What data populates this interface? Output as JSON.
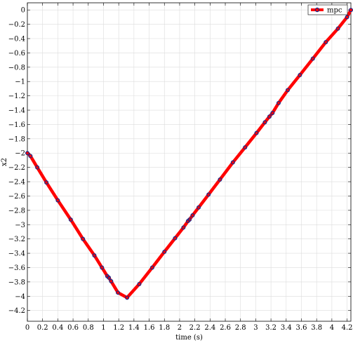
{
  "chart_data": {
    "type": "line",
    "title": "",
    "xlabel": "time (s)",
    "ylabel": "x2",
    "xlim": [
      0,
      4.25
    ],
    "ylim": [
      -4.35,
      0.1
    ],
    "x_ticks": [
      0,
      0.2,
      0.4,
      0.6,
      0.8,
      1,
      1.2,
      1.4,
      1.6,
      1.8,
      2,
      2.2,
      2.4,
      2.6,
      2.8,
      3,
      3.2,
      3.4,
      3.6,
      3.8,
      4,
      4.2
    ],
    "x_tick_labels": [
      "0",
      "0.2",
      "0.4",
      "0.6",
      "0.8",
      "1",
      "1.2",
      "1.4",
      "1.6",
      "1.8",
      "2",
      "2.2",
      "2.4",
      "2.6",
      "2.8",
      "3",
      "3.2",
      "3.4",
      "3.6",
      "3.8",
      "4",
      "4.2"
    ],
    "y_ticks": [
      0,
      -0.2,
      -0.4,
      -0.6,
      -0.8,
      -1,
      -1.2,
      -1.4,
      -1.6,
      -1.8,
      -2,
      -2.2,
      -2.4,
      -2.6,
      -2.8,
      -3,
      -3.2,
      -3.4,
      -3.6,
      -3.8,
      -4,
      -4.2
    ],
    "y_tick_labels": [
      "0",
      "−0.2",
      "−0.4",
      "−0.6",
      "−0.8",
      "−1",
      "−1.2",
      "−1.4",
      "−1.6",
      "−1.8",
      "−2",
      "−2.2",
      "−2.4",
      "−2.6",
      "−2.8",
      "−3",
      "−3.2",
      "−3.4",
      "−3.6",
      "−3.8",
      "−4",
      "−4.2"
    ],
    "grid": true,
    "legend_position": "top-right",
    "series": [
      {
        "name": "mpc",
        "line_color": "#ff0000",
        "marker_color": "#1a2a8a",
        "x": [
          0,
          0.04,
          0.13,
          0.25,
          0.4,
          0.57,
          0.73,
          0.88,
          0.98,
          1.05,
          1.07,
          1.1,
          1.19,
          1.31,
          1.47,
          1.64,
          1.8,
          1.94,
          2.05,
          2.11,
          2.13,
          2.17,
          2.25,
          2.38,
          2.53,
          2.7,
          2.86,
          3.01,
          3.12,
          3.18,
          3.22,
          3.3,
          3.42,
          3.58,
          3.75,
          3.92,
          4.08,
          4.2,
          4.25
        ],
        "y": [
          -2.0,
          -2.04,
          -2.2,
          -2.41,
          -2.66,
          -2.93,
          -3.2,
          -3.43,
          -3.6,
          -3.72,
          -3.74,
          -3.79,
          -3.95,
          -4.02,
          -3.83,
          -3.6,
          -3.38,
          -3.19,
          -3.04,
          -2.95,
          -2.93,
          -2.87,
          -2.76,
          -2.58,
          -2.37,
          -2.13,
          -1.92,
          -1.72,
          -1.57,
          -1.49,
          -1.44,
          -1.3,
          -1.12,
          -0.91,
          -0.68,
          -0.45,
          -0.26,
          -0.1,
          0.0
        ]
      }
    ]
  }
}
